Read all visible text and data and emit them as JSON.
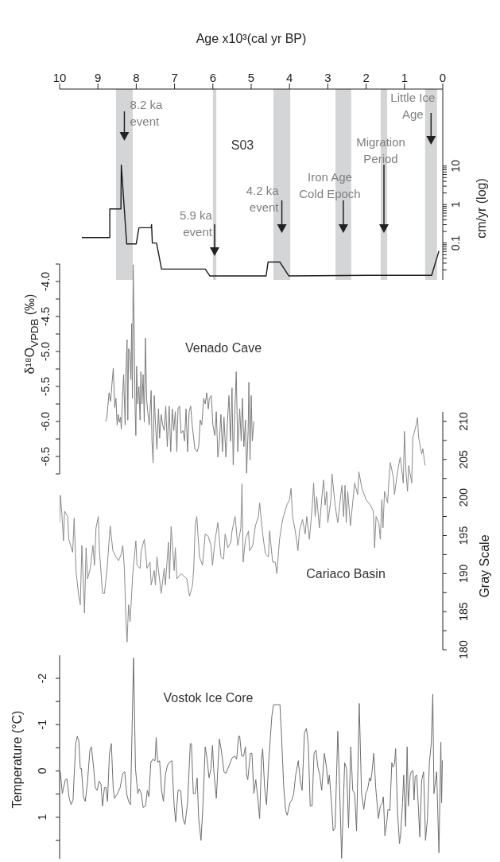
{
  "chart_data": [
    {
      "type": "line",
      "xlabel": "Age x10³(cal yr BP)",
      "ylabel": "cm/yr (log)",
      "log": true,
      "xlim": [
        10,
        0
      ],
      "xticks": [
        10,
        9,
        8,
        7,
        6,
        5,
        4,
        3,
        2,
        1,
        0
      ],
      "ylim": [
        0.011,
        1000
      ],
      "yticks": [
        {
          "value": 0.02,
          "label": null
        },
        {
          "value": 0.03,
          "label": null
        },
        {
          "value": 0.04,
          "label": null
        },
        {
          "value": 0.05,
          "label": null
        },
        {
          "value": 0.06,
          "label": null
        },
        {
          "value": 0.07,
          "label": null
        },
        {
          "value": 0.08,
          "label": null
        },
        {
          "value": 0.09,
          "label": null
        },
        0.1,
        {
          "value": 0.2,
          "label": null
        },
        {
          "value": 0.3,
          "label": null
        },
        {
          "value": 0.4,
          "label": null
        },
        {
          "value": 0.5,
          "label": null
        },
        {
          "value": 0.6,
          "label": null
        },
        {
          "value": 0.7,
          "label": null
        },
        {
          "value": 0.8,
          "label": null
        },
        {
          "value": 0.9,
          "label": null
        },
        1,
        {
          "value": 2,
          "label": null
        },
        {
          "value": 3,
          "label": null
        },
        {
          "value": 4,
          "label": null
        },
        {
          "value": 5,
          "label": null
        },
        {
          "value": 6,
          "label": null
        },
        {
          "value": 7,
          "label": null
        },
        {
          "value": 8,
          "label": null
        },
        {
          "value": 9,
          "label": null
        },
        10
      ],
      "x": [
        9.42,
        8.69,
        8.69,
        8.4,
        8.39,
        8.25,
        8.0,
        7.93,
        7.61,
        7.6,
        7.58,
        7.47,
        7.34,
        6.2,
        6.08,
        4.61,
        4.56,
        4.25,
        4.02,
        1.95,
        0.29,
        0.1
      ],
      "series": [
        {
          "name": "S03",
          "color": "#1a1a1a",
          "values": [
            0.139,
            0.139,
            0.77,
            0.77,
            10.7,
            0.095,
            0.095,
            0.25,
            0.25,
            0.3,
            0.1,
            0.1,
            0.021,
            0.021,
            0.014,
            0.014,
            0.032,
            0.032,
            0.014,
            0.0145,
            0.0145,
            0.062
          ]
        }
      ],
      "bands": [
        {
          "axis": "x",
          "from": 8.53,
          "to": 8.09,
          "label": "8.2 ka event",
          "color": "#d4d5d7"
        },
        {
          "axis": "x",
          "from": 6.0,
          "to": 5.91,
          "label": "5.9 ka event",
          "color": "#d4d5d7"
        },
        {
          "axis": "x",
          "from": 4.42,
          "to": 3.98,
          "label": "4.2 ka event",
          "color": "#d4d5d7"
        },
        {
          "axis": "x",
          "from": 2.8,
          "to": 2.39,
          "label": "Iron Age Cold Epoch",
          "color": "#d4d5d7"
        },
        {
          "axis": "x",
          "from": 1.62,
          "to": 1.45,
          "label": "Migration Period",
          "color": "#d4d5d7"
        },
        {
          "axis": "x",
          "from": 0.46,
          "to": 0.15,
          "label": "Little Ice Age",
          "color": "#d4d5d7"
        }
      ]
    },
    {
      "type": "line",
      "ylabel": "δ¹⁸O$_{VPDB}$ (‰)",
      "tick_labels": "y",
      "xlim": [
        10,
        0
      ],
      "ylim": [
        -6.75,
        -3.75
      ],
      "yticks": [
        {
          "value": -3.75,
          "label": null
        },
        {
          "value": -4,
          "label": "-4.0"
        },
        {
          "value": -4.25,
          "label": null
        },
        {
          "value": -4.5,
          "label": "-4.5"
        },
        {
          "value": -4.75,
          "label": null
        },
        {
          "value": -5,
          "label": "-5.0"
        },
        {
          "value": -5.25,
          "label": null
        },
        {
          "value": -5.5,
          "label": "-5.5"
        },
        {
          "value": -5.75,
          "label": null
        },
        {
          "value": -6,
          "label": "-6.0"
        },
        {
          "value": -6.25,
          "label": null
        },
        {
          "value": -6.5,
          "label": "-6.5"
        },
        {
          "value": -6.75,
          "label": null
        }
      ],
      "x": [
        8.8,
        8.77,
        8.71,
        8.67,
        8.6,
        8.56,
        8.53,
        8.5,
        8.47,
        8.44,
        8.41,
        8.39,
        8.36,
        8.33,
        8.29,
        8.27,
        8.24,
        8.22,
        8.2,
        8.17,
        8.14,
        8.12,
        8.1,
        8.08,
        8.06,
        8.03,
        8.01,
        7.99,
        7.96,
        7.93,
        7.9,
        7.88,
        7.85,
        7.82,
        7.79,
        7.76,
        7.73,
        7.7,
        7.66,
        7.61,
        7.59,
        7.56,
        7.53,
        7.5,
        7.46,
        7.42,
        7.39,
        7.35,
        7.31,
        7.27,
        7.23,
        7.19,
        7.14,
        7.1,
        7.06,
        7.02,
        6.98,
        6.94,
        6.91,
        6.87,
        6.83,
        6.78,
        6.74,
        6.7,
        6.66,
        6.62,
        6.58,
        6.54,
        6.5,
        6.47,
        6.41,
        6.37,
        6.33,
        6.29,
        6.24,
        6.2,
        6.16,
        6.12,
        6.09,
        6.04,
        6.0,
        5.95,
        5.91,
        5.87,
        5.83,
        5.79,
        5.75,
        5.71,
        5.66,
        5.62,
        5.58,
        5.54,
        5.5,
        5.47,
        5.43,
        5.39,
        5.35,
        5.3,
        5.26,
        5.23,
        5.19,
        5.15,
        5.12,
        5.08,
        5.06,
        5.03,
        5.0,
        4.97,
        4.93
      ],
      "series": [
        {
          "name": "Venado Cave",
          "color": "#7d7d7d",
          "values": [
            -6.0,
            -5.96,
            -5.59,
            -5.71,
            -5.24,
            -5.8,
            -5.67,
            -6.05,
            -5.9,
            -6.01,
            -5.94,
            -6.11,
            -5.67,
            -5.33,
            -6.05,
            -5.31,
            -4.83,
            -5.98,
            -4.96,
            -5.02,
            -5.4,
            -4.6,
            -5.67,
            -3.76,
            -4.45,
            -5.82,
            -6.2,
            -5.21,
            -5.75,
            -5.5,
            -5.98,
            -5.29,
            -5.75,
            -5.33,
            -6.01,
            -4.81,
            -5.67,
            -5.86,
            -6.05,
            -5.56,
            -6.28,
            -6.59,
            -5.63,
            -6.01,
            -6.4,
            -5.82,
            -6.24,
            -5.9,
            -6.05,
            -6.13,
            -5.78,
            -6.36,
            -5.78,
            -6.43,
            -5.82,
            -6.13,
            -5.86,
            -6.43,
            -5.82,
            -5.78,
            -6.17,
            -6.13,
            -6.28,
            -5.82,
            -6.43,
            -5.86,
            -5.78,
            -6.05,
            -6.24,
            -6.4,
            -6.43,
            -6.36,
            -5.98,
            -6.05,
            -5.67,
            -5.75,
            -5.59,
            -5.82,
            -5.67,
            -5.63,
            -6.05,
            -6.2,
            -5.86,
            -6.51,
            -6.28,
            -5.9,
            -6.43,
            -5.94,
            -6.51,
            -6.01,
            -5.63,
            -6.28,
            -5.52,
            -6.62,
            -5.9,
            -5.29,
            -6.43,
            -5.82,
            -6.28,
            -5.67,
            -6.36,
            -5.98,
            -6.74,
            -6.13,
            -5.44,
            -6.55,
            -5.63,
            -6.28,
            -6.0
          ]
        }
      ]
    },
    {
      "type": "line",
      "ylabel": "Gray Scale",
      "tick_labels": "y",
      "xlim": [
        10,
        0
      ],
      "ylim": [
        180,
        211.25
      ],
      "yticks": [
        180,
        {
          "value": 182.5,
          "label": null
        },
        185,
        {
          "value": 187.5,
          "label": null
        },
        190,
        {
          "value": 192.5,
          "label": null
        },
        195,
        {
          "value": 197.5,
          "label": null
        },
        200,
        {
          "value": 202.5,
          "label": null
        },
        205,
        {
          "value": 207.5,
          "label": null
        },
        210
      ],
      "x": [
        10.0,
        9.98,
        9.94,
        9.9,
        9.87,
        9.79,
        9.76,
        9.66,
        9.62,
        9.57,
        9.5,
        9.46,
        9.42,
        9.35,
        9.31,
        9.27,
        9.2,
        9.13,
        9.09,
        9.05,
        8.99,
        8.96,
        8.88,
        8.83,
        8.76,
        8.68,
        8.61,
        8.53,
        8.46,
        8.39,
        8.35,
        8.31,
        8.27,
        8.24,
        8.2,
        8.16,
        8.09,
        8.01,
        7.98,
        7.9,
        7.87,
        7.79,
        7.72,
        7.64,
        7.61,
        7.53,
        7.5,
        7.46,
        7.35,
        7.27,
        7.24,
        7.16,
        7.13,
        7.09,
        7.01,
        6.98,
        6.94,
        6.83,
        6.68,
        6.61,
        6.53,
        6.5,
        6.46,
        6.42,
        6.35,
        6.27,
        6.2,
        6.12,
        6.05,
        6.01,
        5.94,
        5.87,
        5.79,
        5.72,
        5.68,
        5.61,
        5.53,
        5.5,
        5.42,
        5.35,
        5.27,
        5.24,
        5.21,
        5.15,
        5.07,
        5.04,
        4.96,
        4.89,
        4.81,
        4.78,
        4.7,
        4.63,
        4.55,
        4.52,
        4.44,
        4.37,
        4.33,
        4.26,
        4.18,
        4.07,
        4.0,
        3.96,
        3.92,
        3.85,
        3.78,
        3.74,
        3.66,
        3.59,
        3.55,
        3.48,
        3.41,
        3.37,
        3.33,
        3.29,
        3.22,
        3.15,
        3.11,
        3.07,
        3.03,
        3.0,
        2.92,
        2.89,
        2.81,
        2.74,
        2.66,
        2.63,
        2.59,
        2.55,
        2.52,
        2.48,
        2.41,
        2.3,
        2.22,
        2.19,
        2.11,
        2.0,
        1.89,
        1.81,
        1.78,
        1.74,
        1.67,
        1.63,
        1.59,
        1.56,
        1.52,
        1.44,
        1.41,
        1.37,
        1.29,
        1.26,
        1.18,
        1.11,
        1.03,
        1.0,
        0.96,
        0.92,
        0.89,
        0.81,
        0.78,
        0.7,
        0.66,
        0.63,
        0.55,
        0.52,
        0.48,
        0.46
      ],
      "series": [
        {
          "name": "Cariaco Basin",
          "color": "#8a8a8a",
          "values": [
            196.7,
            200.3,
            197.8,
            194.3,
            198.2,
            197.5,
            194.5,
            192.8,
            197.3,
            190.2,
            187.0,
            185.9,
            193.7,
            184.8,
            193.4,
            189.3,
            190.7,
            193.7,
            191.1,
            196.0,
            197.5,
            193.0,
            187.4,
            187.4,
            190.7,
            196.3,
            193.0,
            192.2,
            191.7,
            192.6,
            193.7,
            190.7,
            184.0,
            181.0,
            185.9,
            183.7,
            190.0,
            194.3,
            191.1,
            190.7,
            193.0,
            194.5,
            190.7,
            191.5,
            188.5,
            190.4,
            188.5,
            192.2,
            187.4,
            190.7,
            188.5,
            194.1,
            189.3,
            196.2,
            190.4,
            193.4,
            189.3,
            190.0,
            189.3,
            187.0,
            188.5,
            190.7,
            196.3,
            197.5,
            192.2,
            191.1,
            195.2,
            194.9,
            193.7,
            191.1,
            194.5,
            196.7,
            192.2,
            191.9,
            195.2,
            193.4,
            194.1,
            195.6,
            197.5,
            193.7,
            196.0,
            201.8,
            191.5,
            194.5,
            195.6,
            193.0,
            193.7,
            196.3,
            197.5,
            199.3,
            195.2,
            192.6,
            192.2,
            195.6,
            191.5,
            191.5,
            190.0,
            194.5,
            197.1,
            199.0,
            199.7,
            201.2,
            197.5,
            195.6,
            193.0,
            195.6,
            197.1,
            195.2,
            197.5,
            194.5,
            198.6,
            201.9,
            197.5,
            200.1,
            196.0,
            200.4,
            202.3,
            199.0,
            200.8,
            196.7,
            199.7,
            203.1,
            199.0,
            196.7,
            200.4,
            201.6,
            197.5,
            201.6,
            196.7,
            200.8,
            196.3,
            201.9,
            200.4,
            203.4,
            201.2,
            199.7,
            199.0,
            198.2,
            193.4,
            197.5,
            196.7,
            194.5,
            199.7,
            196.0,
            200.8,
            199.3,
            201.9,
            204.6,
            202.7,
            200.4,
            203.4,
            205.3,
            201.9,
            208.7,
            203.4,
            200.8,
            204.2,
            201.9,
            207.9,
            209.4,
            210.5,
            207.9,
            205.7,
            206.4,
            204.9,
            204.2
          ]
        }
      ]
    },
    {
      "type": "line",
      "ylabel": "Temperature (°C)",
      "tick_labels": "y",
      "xlim": [
        10,
        0
      ],
      "ylim": [
        1.9,
        -2.5
      ],
      "yticks": [
        -2,
        {
          "value": -1.5,
          "label": null
        },
        -1,
        {
          "value": -0.5,
          "label": null
        },
        0,
        {
          "value": 0.5,
          "label": null
        },
        1,
        {
          "value": 1.5,
          "label": null
        }
      ],
      "x": [
        9.98,
        9.93,
        9.85,
        9.81,
        9.75,
        9.7,
        9.65,
        9.58,
        9.54,
        9.5,
        9.46,
        9.43,
        9.38,
        9.33,
        9.27,
        9.21,
        9.17,
        9.11,
        9.07,
        9.02,
        8.97,
        8.92,
        8.88,
        8.83,
        8.79,
        8.75,
        8.7,
        8.65,
        8.6,
        8.57,
        8.49,
        8.42,
        8.35,
        8.3,
        8.25,
        8.2,
        8.15,
        8.07,
        8.02,
        7.96,
        7.92,
        7.87,
        7.82,
        7.76,
        7.71,
        7.67,
        7.62,
        7.57,
        7.51,
        7.48,
        7.44,
        7.39,
        7.34,
        7.29,
        7.24,
        7.19,
        7.14,
        7.07,
        7.01,
        6.97,
        6.91,
        6.84,
        6.78,
        6.73,
        6.66,
        6.59,
        6.56,
        6.51,
        6.46,
        6.41,
        6.37,
        6.31,
        6.26,
        6.2,
        6.15,
        6.1,
        6.05,
        6.01,
        5.98,
        5.91,
        5.83,
        5.78,
        5.71,
        5.66,
        5.58,
        5.5,
        5.43,
        5.38,
        5.33,
        5.3,
        5.25,
        5.2,
        5.15,
        5.12,
        5.09,
        5.02,
        4.98,
        4.93,
        4.88,
        4.83,
        4.78,
        4.73,
        4.7,
        4.65,
        4.6,
        4.54,
        4.46,
        4.42,
        4.25,
        4.21,
        4.15,
        4.1,
        4.06,
        3.99,
        3.94,
        3.89,
        3.84,
        3.77,
        3.72,
        3.67,
        3.61,
        3.56,
        3.51,
        3.46,
        3.41,
        3.36,
        3.31,
        3.26,
        3.21,
        3.16,
        3.09,
        3.04,
        2.99,
        2.96,
        2.91,
        2.86,
        2.81,
        2.74,
        2.69,
        2.64,
        2.56,
        2.51,
        2.46,
        2.4,
        2.35,
        2.3,
        2.25,
        2.18,
        2.12,
        2.06,
        2.01,
        1.96,
        1.91,
        1.88,
        1.85,
        1.8,
        1.75,
        1.68,
        1.63,
        1.58,
        1.55,
        1.51,
        1.46,
        1.43,
        1.38,
        1.33,
        1.3,
        1.26,
        1.23,
        1.18,
        1.13,
        1.1,
        1.05,
        1.02,
        0.97,
        0.93,
        0.9,
        0.85,
        0.82,
        0.78,
        0.75,
        0.72,
        0.68,
        0.63,
        0.6,
        0.55,
        0.5,
        0.45,
        0.4,
        0.35,
        0.3,
        0.26,
        0.23,
        0.16,
        0.1,
        0.05,
        0.03,
        0.01,
        0
      ],
      "series": [
        {
          "name": "Vostok Ice Core",
          "color": "#6e6e6e",
          "values": [
            0.02,
            0.49,
            0.19,
            0.17,
            0.59,
            0.73,
            0.63,
            -0.59,
            -0.75,
            -0.65,
            -0.05,
            -0.05,
            0.56,
            0.66,
            0.22,
            -0.45,
            -0.52,
            -0.05,
            0.36,
            0.42,
            0.22,
            0.29,
            0.76,
            0.36,
            0.36,
            0.66,
            -0.38,
            -0.59,
            0.39,
            0.59,
            0.49,
            0.36,
            0.05,
            0.02,
            0.49,
            0.66,
            0.73,
            -2.44,
            -0.05,
            0.49,
            0.39,
            0.49,
            0.79,
            0.76,
            0.42,
            0.56,
            -0.18,
            -0.25,
            -0.22,
            -0.72,
            -0.18,
            -0.22,
            0.42,
            0.66,
            0.09,
            -0.11,
            -0.18,
            -0.22,
            0.76,
            1.1,
            0.42,
            0.42,
            1.03,
            1.16,
            0.69,
            -0.59,
            -0.59,
            0.49,
            0.49,
            0.15,
            1.03,
            1.5,
            0.76,
            -0.52,
            -0.25,
            0.15,
            -0.05,
            -0.55,
            -0.05,
            0.59,
            -0.69,
            -0.45,
            0.02,
            0.05,
            -0.11,
            -0.28,
            -0.32,
            -0.25,
            -0.75,
            -0.75,
            -0.32,
            -0.32,
            -0.52,
            0.09,
            0.19,
            -0.38,
            -0.38,
            0.49,
            0.19,
            0.56,
            1.03,
            -0.25,
            -0.48,
            0.36,
            0.73,
            -0.25,
            -1.19,
            -1.43,
            -1.43,
            -0.79,
            0.36,
            0.86,
            0.96,
            0.69,
            0.63,
            0.49,
            0.09,
            -0.22,
            0.22,
            0.42,
            -0.82,
            -0.92,
            -0.59,
            0.76,
            0.76,
            -0.38,
            -0.45,
            -0.08,
            0.09,
            0.42,
            -0.38,
            -0.11,
            0.29,
            0.09,
            0.63,
            1.3,
            1.23,
            -0.86,
            0.42,
            1.89,
            -0.18,
            -0.05,
            1.23,
            -0.52,
            0.42,
            0.49,
            1.3,
            -1.46,
            0.49,
            0.83,
            0.49,
            0.39,
            0.15,
            0.22,
            0.05,
            -0.38,
            0.36,
            1.03,
            0.76,
            0.69,
            0.56,
            1.4,
            1.1,
            0.83,
            0.86,
            -0.18,
            -0.08,
            -0.15,
            -0.48,
            0.9,
            1.57,
            1.37,
            0.69,
            0.09,
            1.2,
            -0.52,
            0.76,
            0.09,
            0.02,
            -0.01,
            0.63,
            0.12,
            0.09,
            0.9,
            1.43,
            0.19,
            0.02,
            1.5,
            1.03,
            -0.18,
            -0.59,
            -1.66,
            0.49,
            0.02,
            1.77,
            -0.62,
            0.69,
            -0.22,
            -0.22
          ]
        }
      ]
    }
  ]
}
